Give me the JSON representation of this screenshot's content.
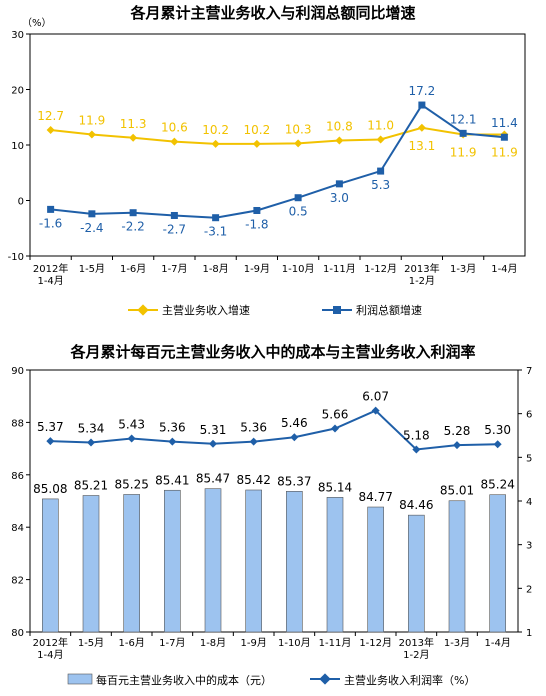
{
  "chart_data": [
    {
      "type": "line",
      "title": "各月累计主营业务收入与利润总额同比增速",
      "y_unit_label": "（%）",
      "ylim": [
        -10,
        30
      ],
      "yticks": [
        -10,
        0,
        10,
        20,
        30
      ],
      "categories": [
        [
          "2012年",
          "1-4月"
        ],
        [
          "1-5月"
        ],
        [
          "1-6月"
        ],
        [
          "1-7月"
        ],
        [
          "1-8月"
        ],
        [
          "1-9月"
        ],
        [
          "1-10月"
        ],
        [
          "1-11月"
        ],
        [
          "1-12月"
        ],
        [
          "2013年",
          "1-2月"
        ],
        [
          "1-3月"
        ],
        [
          "1-4月"
        ]
      ],
      "series": [
        {
          "name": "主营业务收入增速",
          "color": "#f2c200",
          "marker": "diamond",
          "values": [
            12.7,
            11.9,
            11.3,
            10.6,
            10.2,
            10.2,
            10.3,
            10.8,
            11.0,
            13.1,
            11.9,
            11.9
          ],
          "labels": [
            "12.7",
            "11.9",
            "11.3",
            "10.6",
            "10.2",
            "10.2",
            "10.3",
            "10.8",
            "11.0",
            "13.1",
            "11.9",
            "11.9"
          ]
        },
        {
          "name": "利润总额增速",
          "color": "#1f5fa8",
          "marker": "square",
          "values": [
            -1.6,
            -2.4,
            -2.2,
            -2.7,
            -3.1,
            -1.8,
            0.5,
            3.0,
            5.3,
            17.2,
            12.1,
            11.4
          ],
          "labels": [
            "-1.6",
            "-2.4",
            "-2.2",
            "-2.7",
            "-3.1",
            "-1.8",
            "0.5",
            "3.0",
            "5.3",
            "17.2",
            "12.1",
            "11.4"
          ]
        }
      ],
      "grid": false,
      "legend": "bottom"
    },
    {
      "type": "bar+line",
      "title": "各月累计每百元主营业务收入中的成本与主营业务收入利润率",
      "ylim": [
        80,
        90
      ],
      "yticks": [
        80,
        82,
        84,
        86,
        88,
        90
      ],
      "y2lim": [
        1,
        7
      ],
      "y2ticks": [
        1,
        2,
        3,
        4,
        5,
        6,
        7
      ],
      "categories": [
        [
          "2012年",
          "1-4月"
        ],
        [
          "1-5月"
        ],
        [
          "1-6月"
        ],
        [
          "1-7月"
        ],
        [
          "1-8月"
        ],
        [
          "1-9月"
        ],
        [
          "1-10月"
        ],
        [
          "1-11月"
        ],
        [
          "1-12月"
        ],
        [
          "2013年",
          "1-2月"
        ],
        [
          "1-3月"
        ],
        [
          "1-4月"
        ]
      ],
      "series": [
        {
          "name": "每百元主营业务收入中的成本（元）",
          "type": "bar",
          "axis": "left",
          "color": "#9dc3ef",
          "values": [
            85.08,
            85.21,
            85.25,
            85.41,
            85.47,
            85.42,
            85.37,
            85.14,
            84.77,
            84.46,
            85.01,
            85.24
          ],
          "labels": [
            "85.08",
            "85.21",
            "85.25",
            "85.41",
            "85.47",
            "85.42",
            "85.37",
            "85.14",
            "84.77",
            "84.46",
            "85.01",
            "85.24"
          ]
        },
        {
          "name": "主营业务收入利润率（%）",
          "type": "line",
          "axis": "right",
          "color": "#1f5fa8",
          "marker": "diamond",
          "values": [
            5.37,
            5.34,
            5.43,
            5.36,
            5.31,
            5.36,
            5.46,
            5.66,
            6.07,
            5.18,
            5.28,
            5.3
          ],
          "labels": [
            "5.37",
            "5.34",
            "5.43",
            "5.36",
            "5.31",
            "5.36",
            "5.46",
            "5.66",
            "6.07",
            "5.18",
            "5.28",
            "5.30"
          ]
        }
      ],
      "grid": false,
      "legend": "bottom"
    }
  ]
}
